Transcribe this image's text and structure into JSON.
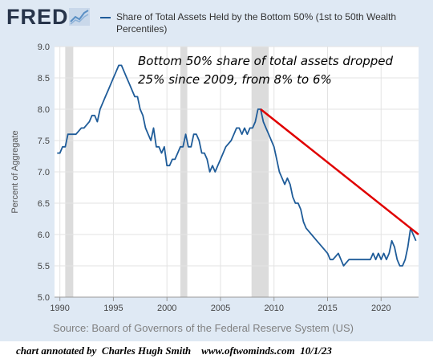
{
  "header": {
    "logo_text": "FRED",
    "legend_label": "Share of Total Assets Held by the Bottom 50% (1st to 50th Wealth Percentiles)"
  },
  "source": "Source: Board of Governors of the Federal Reserve System (US)",
  "credit": "chart annotated by  Charles Hugh Smith    www.oftwominds.com  10/1/23",
  "colors": {
    "panel": "#dfe9f4",
    "plot_bg": "#ffffff",
    "line": "#1f5c99",
    "annotation_line": "#e00000",
    "recession": "#dcdcdc"
  },
  "chart_data": {
    "type": "line",
    "title": "",
    "xlabel": "",
    "ylabel": "Percent of Aggregate",
    "xlim": [
      1989.5,
      2023.5
    ],
    "ylim": [
      5.0,
      9.0
    ],
    "grid": true,
    "yticks": [
      "5.0",
      "5.5",
      "6.0",
      "6.5",
      "7.0",
      "7.5",
      "8.0",
      "8.5",
      "9.0"
    ],
    "xticks": [
      "1990",
      "1995",
      "2000",
      "2005",
      "2010",
      "2015",
      "2020"
    ],
    "recessions": [
      [
        1990.5,
        1991.25
      ],
      [
        2001.25,
        2001.9
      ],
      [
        2007.9,
        2009.5
      ]
    ],
    "series": [
      {
        "name": "Share of Total Assets Held by the Bottom 50% (1st to 50th Wealth Percentiles)",
        "x": [
          1989.75,
          1990.0,
          1990.25,
          1990.5,
          1990.75,
          1991.0,
          1991.5,
          1992.0,
          1992.25,
          1992.75,
          1993.0,
          1993.25,
          1993.5,
          1993.75,
          1994.0,
          1994.25,
          1994.5,
          1994.75,
          1995.0,
          1995.25,
          1995.5,
          1995.75,
          1996.0,
          1996.25,
          1996.5,
          1996.75,
          1997.0,
          1997.25,
          1997.5,
          1997.75,
          1998.0,
          1998.25,
          1998.5,
          1998.75,
          1999.0,
          1999.25,
          1999.5,
          1999.75,
          2000.0,
          2000.25,
          2000.5,
          2000.75,
          2001.0,
          2001.25,
          2001.5,
          2001.75,
          2002.0,
          2002.25,
          2002.5,
          2002.75,
          2003.0,
          2003.25,
          2003.5,
          2003.75,
          2004.0,
          2004.25,
          2004.5,
          2004.75,
          2005.0,
          2005.5,
          2006.0,
          2006.25,
          2006.5,
          2006.75,
          2007.0,
          2007.25,
          2007.5,
          2007.75,
          2008.0,
          2008.25,
          2008.5,
          2008.75,
          2009.0,
          2009.25,
          2009.5,
          2009.75,
          2010.0,
          2010.25,
          2010.5,
          2010.75,
          2011.0,
          2011.25,
          2011.5,
          2011.75,
          2012.0,
          2012.25,
          2012.5,
          2012.75,
          2013.0,
          2013.5,
          2014.0,
          2014.5,
          2015.0,
          2015.25,
          2015.5,
          2016.0,
          2016.25,
          2016.5,
          2017.0,
          2017.5,
          2018.0,
          2018.5,
          2019.0,
          2019.25,
          2019.5,
          2019.75,
          2020.0,
          2020.25,
          2020.5,
          2020.75,
          2021.0,
          2021.25,
          2021.5,
          2021.75,
          2022.0,
          2022.25,
          2022.5,
          2022.75,
          2023.0,
          2023.25
        ],
        "values": [
          7.3,
          7.3,
          7.4,
          7.4,
          7.6,
          7.6,
          7.6,
          7.7,
          7.7,
          7.8,
          7.9,
          7.9,
          7.8,
          8.0,
          8.1,
          8.2,
          8.3,
          8.4,
          8.5,
          8.6,
          8.7,
          8.7,
          8.6,
          8.5,
          8.4,
          8.3,
          8.2,
          8.2,
          8.0,
          7.9,
          7.7,
          7.6,
          7.5,
          7.7,
          7.4,
          7.4,
          7.3,
          7.4,
          7.1,
          7.1,
          7.2,
          7.2,
          7.3,
          7.4,
          7.4,
          7.6,
          7.4,
          7.4,
          7.6,
          7.6,
          7.5,
          7.3,
          7.3,
          7.2,
          7.0,
          7.1,
          7.0,
          7.1,
          7.2,
          7.4,
          7.5,
          7.6,
          7.7,
          7.7,
          7.6,
          7.7,
          7.6,
          7.7,
          7.7,
          7.8,
          8.0,
          8.0,
          7.8,
          7.7,
          7.6,
          7.5,
          7.4,
          7.2,
          7.0,
          6.9,
          6.8,
          6.9,
          6.8,
          6.6,
          6.5,
          6.5,
          6.4,
          6.2,
          6.1,
          6.0,
          5.9,
          5.8,
          5.7,
          5.6,
          5.6,
          5.7,
          5.6,
          5.5,
          5.6,
          5.6,
          5.6,
          5.6,
          5.6,
          5.7,
          5.6,
          5.7,
          5.6,
          5.7,
          5.6,
          5.7,
          5.9,
          5.8,
          5.6,
          5.5,
          5.5,
          5.6,
          5.8,
          6.1,
          6.0,
          5.9
        ]
      }
    ],
    "annotation": {
      "text_line1": "Bottom 50% share of total assets dropped",
      "text_line2": "25% since 2009, from 8% to 6%",
      "trend_line": {
        "x": [
          2008.75,
          2023.5
        ],
        "y": [
          8.0,
          6.0
        ]
      }
    }
  }
}
